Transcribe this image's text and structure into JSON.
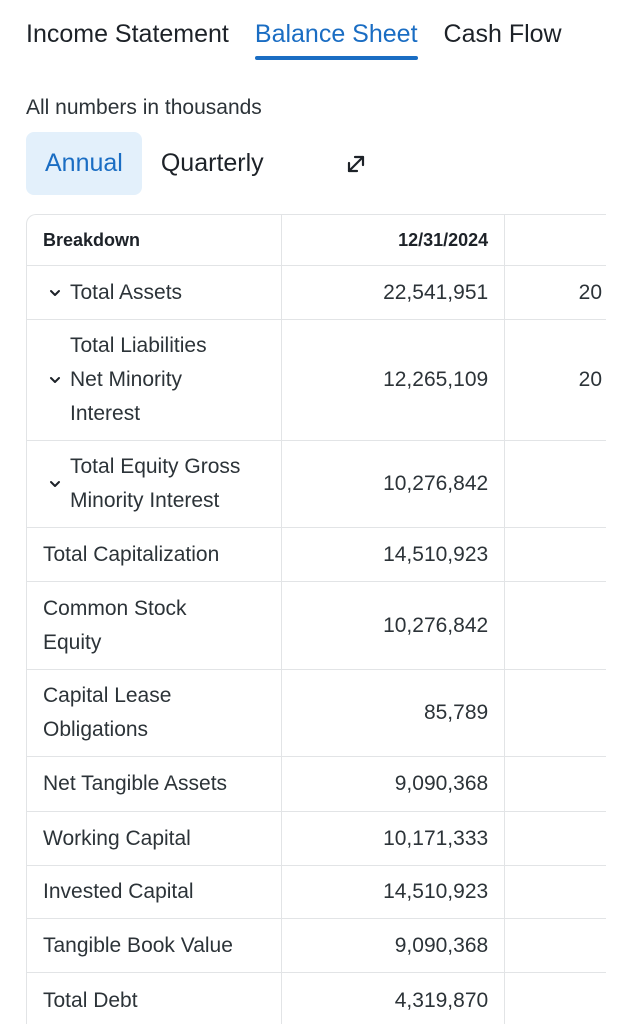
{
  "tabs": [
    {
      "label": "Income Statement"
    },
    {
      "label": "Balance Sheet",
      "active": true
    },
    {
      "label": "Cash Flow"
    }
  ],
  "units_note": "All numbers in thousands",
  "period_toggle": {
    "annual": "Annual",
    "quarterly": "Quarterly",
    "selected": "Annual"
  },
  "table": {
    "header": {
      "breakdown": "Breakdown",
      "col1": "12/31/2024"
    },
    "rows": [
      {
        "label": "Total Assets",
        "value": "22,541,951",
        "next": "20"
      },
      {
        "label": "Total Liabilities Net Minority Interest",
        "value": "12,265,109",
        "next": "20"
      },
      {
        "label": "Total Equity Gross Minority Interest",
        "value": "10,276,842",
        "next": ""
      },
      {
        "label": "Total Capitalization",
        "value": "14,510,923",
        "next": ""
      },
      {
        "label": "Common Stock Equity",
        "value": "10,276,842",
        "next": ""
      },
      {
        "label": "Capital Lease Obligations",
        "value": "85,789",
        "next": ""
      },
      {
        "label": "Net Tangible Assets",
        "value": "9,090,368",
        "next": ""
      },
      {
        "label": "Working Capital",
        "value": "10,171,333",
        "next": ""
      },
      {
        "label": "Invested Capital",
        "value": "14,510,923",
        "next": ""
      },
      {
        "label": "Tangible Book Value",
        "value": "9,090,368",
        "next": ""
      },
      {
        "label": "Total Debt",
        "value": "4,319,870",
        "next": ""
      }
    ]
  },
  "colors": {
    "accent": "#1a6dc3",
    "accent_bg": "#e3f0fb",
    "border": "#e2e4e6",
    "text": "#1d2228"
  },
  "icons": {
    "expand": "expand-arrows-icon",
    "chevron": "chevron-down-icon"
  }
}
